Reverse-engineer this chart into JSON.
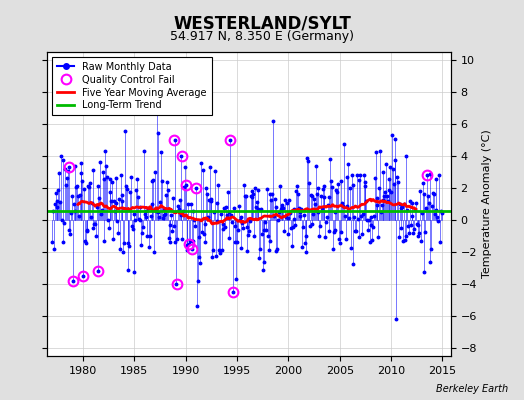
{
  "title": "WESTERLAND/SYLT",
  "subtitle": "54.917 N, 8.350 E (Germany)",
  "ylabel": "Temperature Anomaly (°C)",
  "credit": "Berkeley Earth",
  "xlim": [
    1976.5,
    2015.8
  ],
  "ylim": [
    -8.5,
    10.5
  ],
  "yticks": [
    -8,
    -6,
    -4,
    -2,
    0,
    2,
    4,
    6,
    8,
    10
  ],
  "xticks": [
    1980,
    1985,
    1990,
    1995,
    2000,
    2005,
    2010,
    2015
  ],
  "long_term_trend_y": 0.55,
  "bg_color": "#e0e0e0",
  "plot_bg_color": "#ffffff",
  "raw_color": "#0000ff",
  "qc_color": "#ff00ff",
  "moving_avg_color": "#ff0000",
  "trend_color": "#00bb00",
  "legend_labels": [
    "Raw Monthly Data",
    "Quality Control Fail",
    "Five Year Moving Average",
    "Long-Term Trend"
  ],
  "title_fontsize": 12,
  "subtitle_fontsize": 9,
  "tick_fontsize": 8,
  "ylabel_fontsize": 8
}
